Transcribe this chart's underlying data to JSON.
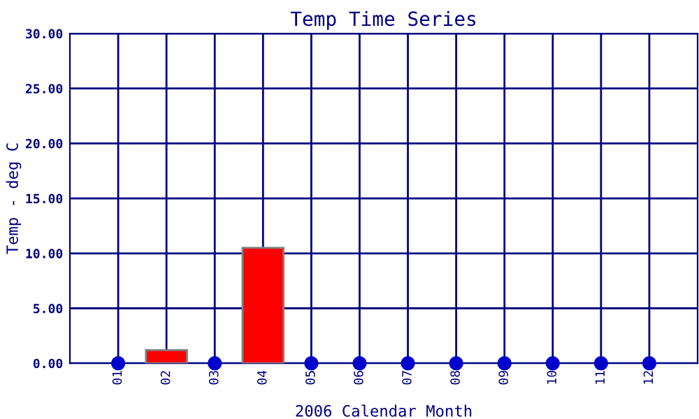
{
  "chart_data": {
    "type": "bar",
    "title": "Temp Time Series",
    "xlabel": "2006 Calendar Month",
    "ylabel": "Temp - deg C",
    "categories": [
      "01",
      "02",
      "03",
      "04",
      "05",
      "06",
      "07",
      "08",
      "09",
      "10",
      "11",
      "12"
    ],
    "series": [
      {
        "color": "#ff0000",
        "values": [
          null,
          1.2,
          null,
          10.5,
          null,
          null,
          null,
          null,
          null,
          null,
          null,
          null
        ]
      },
      {
        "type": "scatter",
        "color": "#0000cc",
        "values": [
          0,
          null,
          0,
          null,
          0,
          0,
          0,
          0,
          0,
          0,
          0,
          0
        ]
      }
    ],
    "ylim": [
      0,
      30
    ],
    "yticks": [
      {
        "value": 0,
        "label": "0.00"
      },
      {
        "value": 5,
        "label": "5.00"
      },
      {
        "value": 10,
        "label": "10.00"
      },
      {
        "value": 15,
        "label": "15.00"
      },
      {
        "value": 20,
        "label": "20.00"
      },
      {
        "value": 25,
        "label": "25.00"
      },
      {
        "value": 30,
        "label": "30.00"
      }
    ],
    "grid": true,
    "marker": "circle"
  }
}
